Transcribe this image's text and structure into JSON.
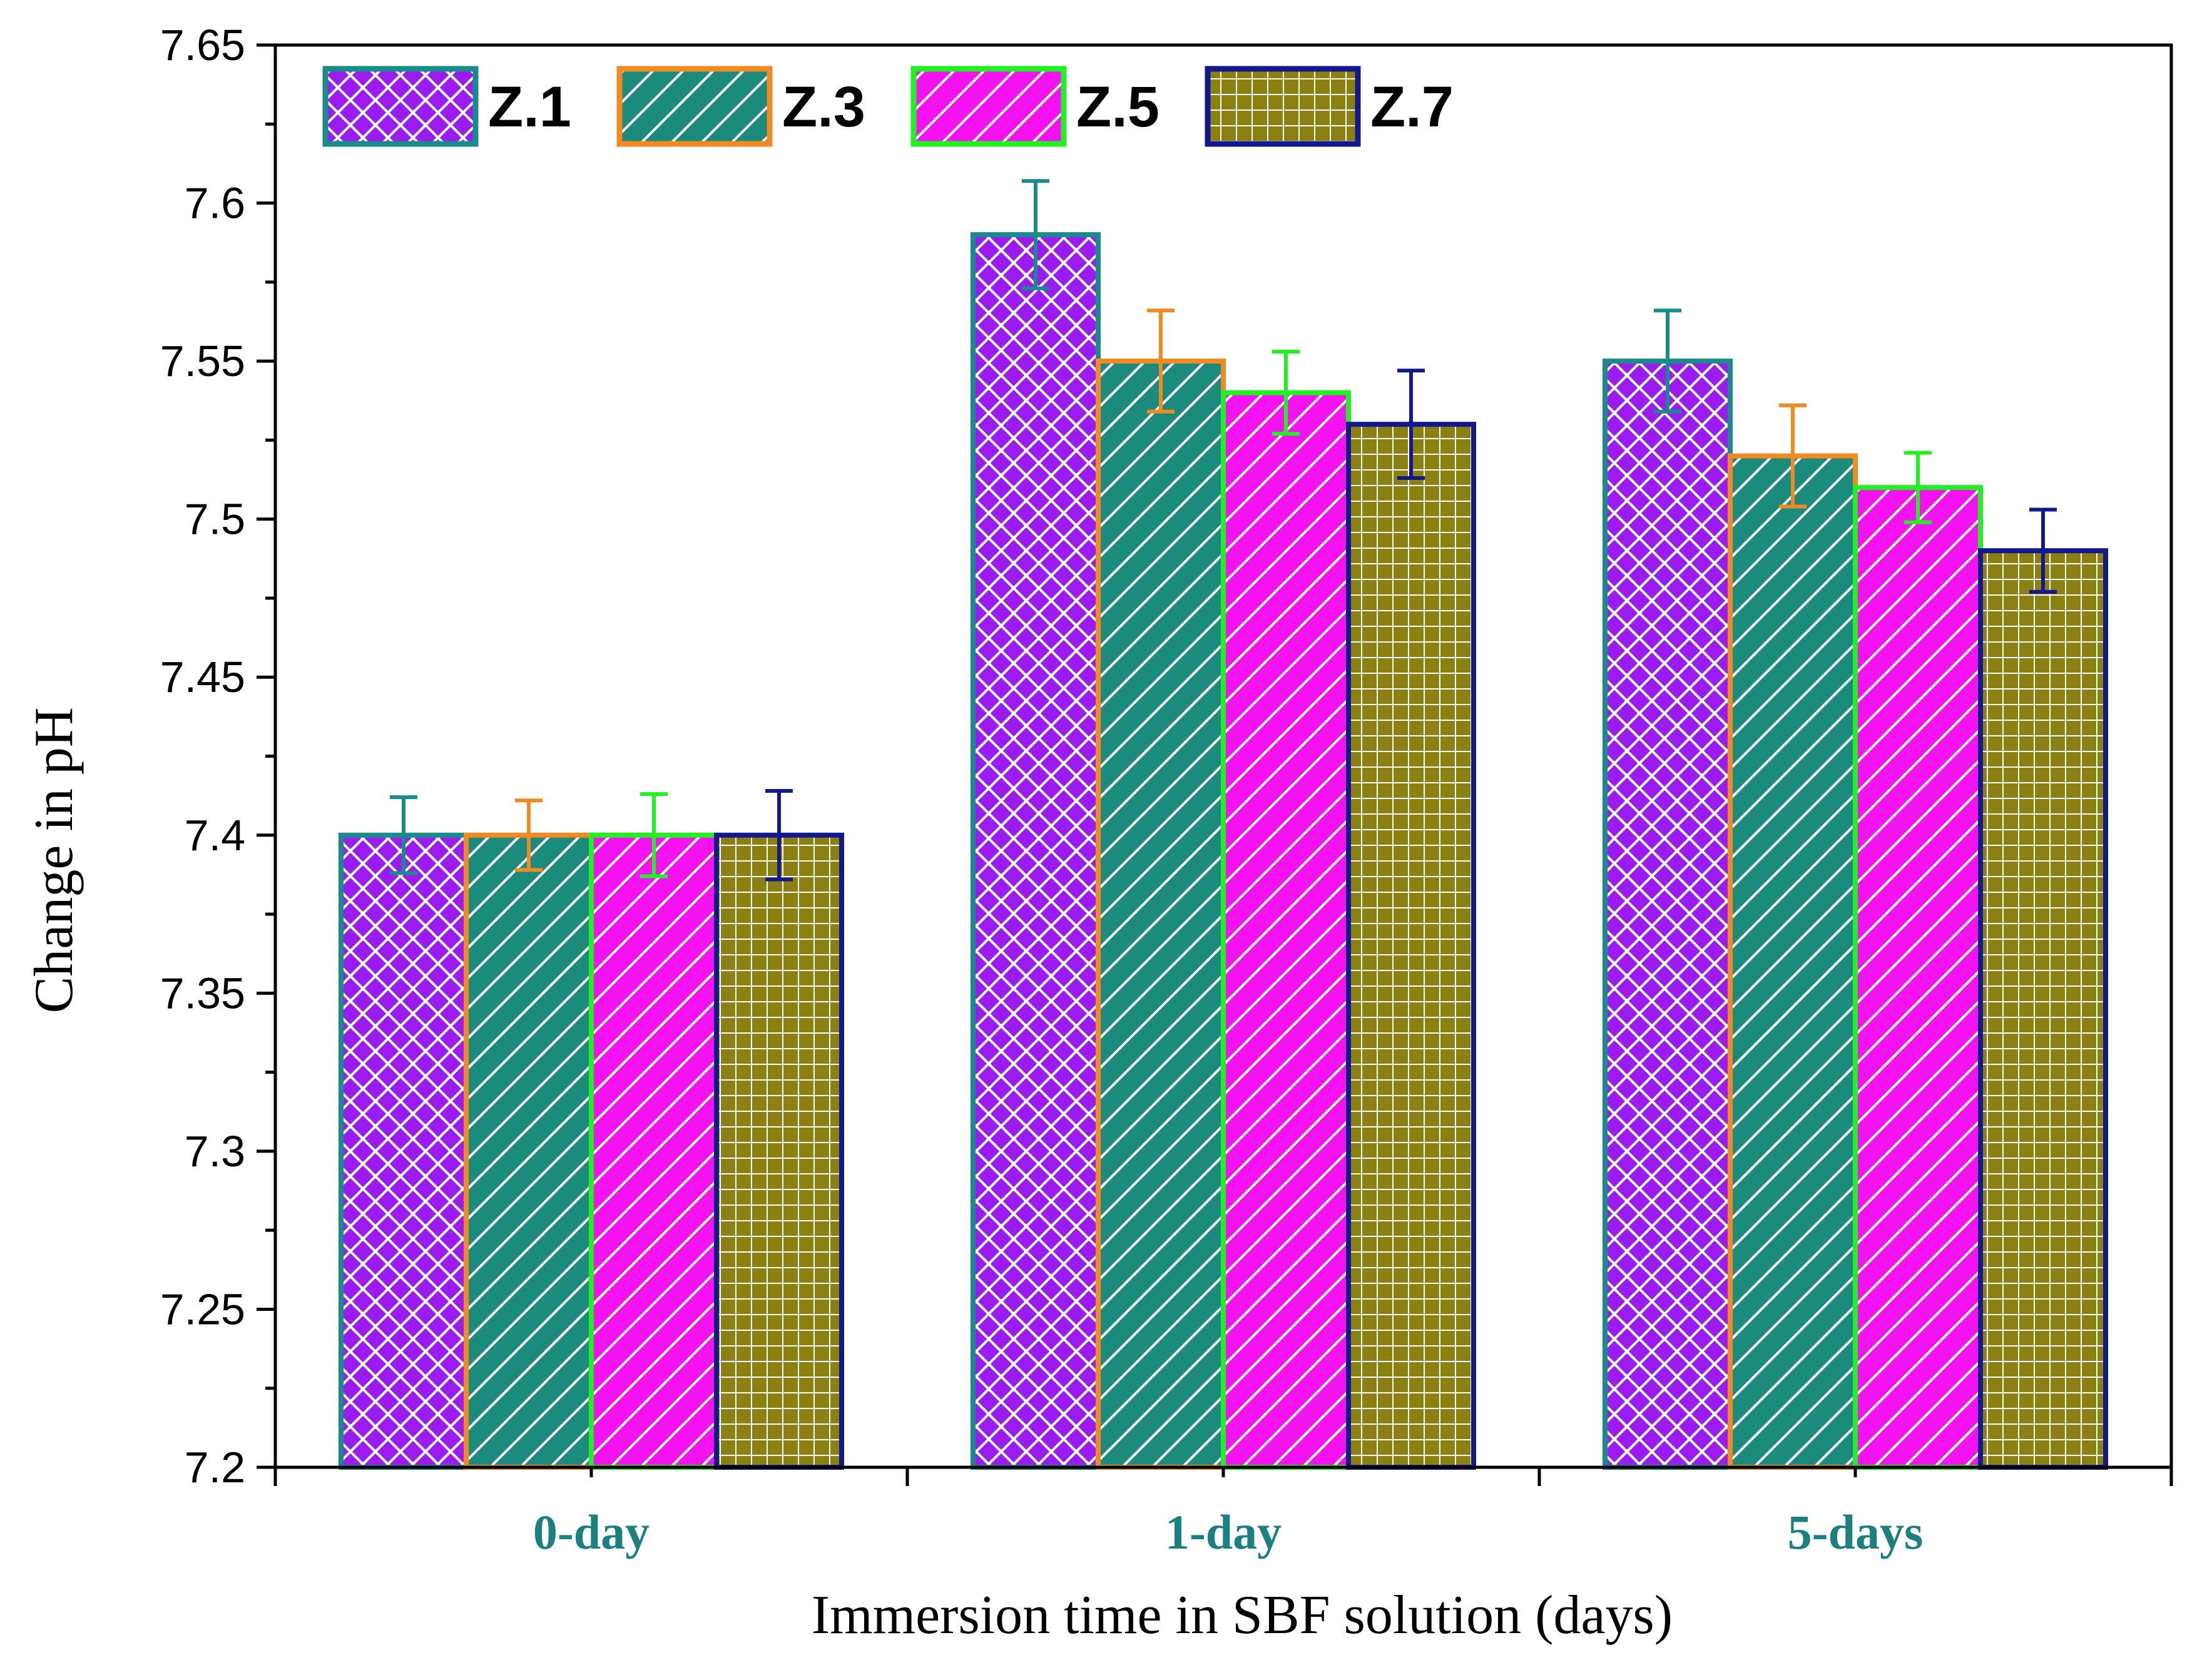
{
  "chart_data": {
    "type": "bar",
    "title": "",
    "xlabel": "Immersion time in SBF solution (days)",
    "ylabel": "Change in pH",
    "ylim": [
      7.2,
      7.65
    ],
    "yticks": [
      "7.2",
      "7.25",
      "7.3",
      "7.35",
      "7.4",
      "7.45",
      "7.5",
      "7.55",
      "7.6",
      "7.65"
    ],
    "categories": [
      "0-day",
      "1-day",
      "5-days"
    ],
    "category_label_color": "#1a8080",
    "legend_position": "top-left",
    "series": [
      {
        "name": "Z.1",
        "values": [
          7.4,
          7.59,
          7.55
        ],
        "errors": [
          0.012,
          0.017,
          0.016
        ],
        "fill": "#9b1bf0",
        "edge": "#188b8b",
        "pattern": "crosshatch"
      },
      {
        "name": "Z.3",
        "values": [
          7.4,
          7.55,
          7.52
        ],
        "errors": [
          0.011,
          0.016,
          0.016
        ],
        "fill": "#1b8b7e",
        "edge": "#f28a22",
        "pattern": "diagonal"
      },
      {
        "name": "Z.5",
        "values": [
          7.4,
          7.54,
          7.51
        ],
        "errors": [
          0.013,
          0.013,
          0.011
        ],
        "fill": "#f512f0",
        "edge": "#21f021",
        "pattern": "diagonal"
      },
      {
        "name": "Z.7",
        "values": [
          7.4,
          7.53,
          7.49
        ],
        "errors": [
          0.014,
          0.017,
          0.013
        ],
        "fill": "#8b8012",
        "edge": "#121a8b",
        "pattern": "grid"
      }
    ]
  }
}
